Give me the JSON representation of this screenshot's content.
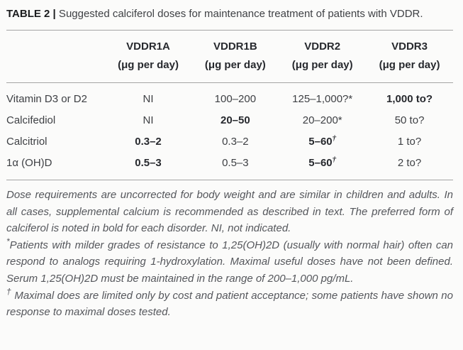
{
  "title": {
    "label": "TABLE 2 |",
    "text": " Suggested calciferol doses for maintenance treatment of patients with VDDR."
  },
  "table": {
    "columns": [
      {
        "name": "VDDR1A",
        "unit": "(μg per day)"
      },
      {
        "name": "VDDR1B",
        "unit": "(μg per day)"
      },
      {
        "name": "VDDR2",
        "unit": "(μg per day)"
      },
      {
        "name": "VDDR3",
        "unit": "(μg per day)"
      }
    ],
    "rows": [
      {
        "label": "Vitamin D3 or D2",
        "cells": [
          {
            "text": "NI",
            "bold": false,
            "sup": ""
          },
          {
            "text": "100–200",
            "bold": false,
            "sup": ""
          },
          {
            "text": "125–1,000?*",
            "bold": false,
            "sup": ""
          },
          {
            "text": "1,000 to?",
            "bold": true,
            "sup": ""
          }
        ]
      },
      {
        "label": "Calcifediol",
        "cells": [
          {
            "text": "NI",
            "bold": false,
            "sup": ""
          },
          {
            "text": "20–50",
            "bold": true,
            "sup": ""
          },
          {
            "text": "20–200*",
            "bold": false,
            "sup": ""
          },
          {
            "text": "50 to?",
            "bold": false,
            "sup": ""
          }
        ]
      },
      {
        "label": "Calcitriol",
        "cells": [
          {
            "text": "0.3–2",
            "bold": true,
            "sup": ""
          },
          {
            "text": "0.3–2",
            "bold": false,
            "sup": ""
          },
          {
            "text": "5–60",
            "bold": true,
            "sup": "†"
          },
          {
            "text": "1 to?",
            "bold": false,
            "sup": ""
          }
        ]
      },
      {
        "label": "1α (OH)D",
        "cells": [
          {
            "text": "0.5–3",
            "bold": true,
            "sup": ""
          },
          {
            "text": "0.5–3",
            "bold": false,
            "sup": ""
          },
          {
            "text": "5–60",
            "bold": true,
            "sup": "†"
          },
          {
            "text": "2 to?",
            "bold": false,
            "sup": ""
          }
        ]
      }
    ]
  },
  "footnotes": [
    {
      "marker": "",
      "text": "Dose requirements are uncorrected for body weight and are similar in children and adults. In all cases, supplemental calcium is recommended as described in text. The preferred form of calciferol is noted in bold for each disorder. NI, not indicated."
    },
    {
      "marker": "*",
      "text": "Patients with milder grades of resistance to 1,25(OH)2D (usually with normal hair) often can respond to analogs requiring 1-hydroxylation. Maximal useful doses have not been defined. Serum 1,25(OH)2D must be maintained in the range of 200–1,000 pg/mL."
    },
    {
      "marker": "†",
      "text": " Maximal does are limited only by cost and patient acceptance; some patients have shown no response to maximal doses tested."
    }
  ],
  "colors": {
    "background": "#fbfbfa",
    "rule_gray": "#a5a5a5",
    "heading_text": "#27292e",
    "body_text": "#3e4044",
    "footnote_text": "#55575c"
  }
}
